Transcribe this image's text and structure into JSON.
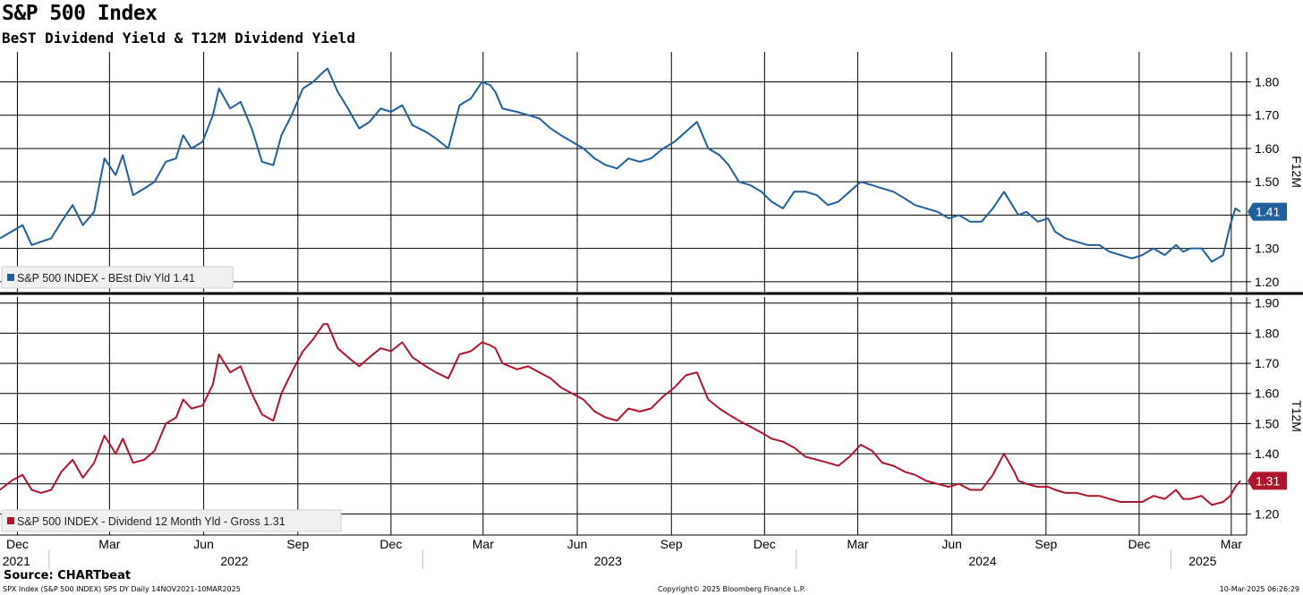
{
  "title": "S&P 500 Index",
  "subtitle": "BeST Dividend Yield & T12M Dividend Yield",
  "source": "Source: CHARTbeat",
  "footer": {
    "left": "SPX Index (S&P 500 INDEX) SPS DY  Daily 14NOV2021-10MAR2025",
    "center": "Copyright© 2025 Bloomberg Finance L.P.",
    "right": "10-Mar-2025 06:26:29"
  },
  "colors": {
    "top_series": "#1f5f9e",
    "bottom_series": "#b0132c",
    "grid": "#000000"
  },
  "x_axis": {
    "months": [
      "Dec",
      "Mar",
      "Jun",
      "Sep",
      "Dec",
      "Mar",
      "Jun",
      "Sep",
      "Dec",
      "Mar",
      "Jun",
      "Sep",
      "Dec",
      "Mar"
    ],
    "years": [
      "2021",
      "2022",
      "2023",
      "2024",
      "2025"
    ]
  },
  "chart_data": [
    {
      "type": "line",
      "ylabel": "F12M",
      "ylim": [
        1.17,
        1.89
      ],
      "yticks": [
        1.2,
        1.3,
        1.4,
        1.5,
        1.6,
        1.7,
        1.8
      ],
      "ytick_labels": [
        "1.20",
        "1.30",
        "1.40",
        "1.50",
        "1.60",
        "1.70",
        "1.80"
      ],
      "legend": "S&P 500 INDEX - BEst Div Yld 1.41",
      "last_value_label": "1.41",
      "grid": true,
      "series": [
        {
          "name": "S&P 500 INDEX - BEst Div Yld",
          "x": [
            "2021-11-14",
            "2021-11-25",
            "2021-12-06",
            "2021-12-15",
            "2021-12-24",
            "2022-01-03",
            "2022-01-13",
            "2022-01-24",
            "2022-02-03",
            "2022-02-14",
            "2022-02-24",
            "2022-03-07",
            "2022-03-14",
            "2022-03-24",
            "2022-04-04",
            "2022-04-14",
            "2022-04-25",
            "2022-05-05",
            "2022-05-12",
            "2022-05-20",
            "2022-05-31",
            "2022-06-10",
            "2022-06-16",
            "2022-06-27",
            "2022-07-07",
            "2022-07-18",
            "2022-07-28",
            "2022-08-08",
            "2022-08-16",
            "2022-08-26",
            "2022-09-06",
            "2022-09-16",
            "2022-09-26",
            "2022-09-30",
            "2022-10-10",
            "2022-10-20",
            "2022-10-31",
            "2022-11-10",
            "2022-11-21",
            "2022-12-01",
            "2022-12-12",
            "2022-12-22",
            "2023-01-04",
            "2023-01-14",
            "2023-01-26",
            "2023-02-06",
            "2023-02-17",
            "2023-02-28",
            "2023-03-08",
            "2023-03-13",
            "2023-03-20",
            "2023-04-03",
            "2023-04-14",
            "2023-04-25",
            "2023-05-06",
            "2023-05-16",
            "2023-05-27",
            "2023-06-07",
            "2023-06-18",
            "2023-06-29",
            "2023-07-10",
            "2023-07-21",
            "2023-08-01",
            "2023-08-12",
            "2023-08-24",
            "2023-09-04",
            "2023-09-15",
            "2023-09-26",
            "2023-10-07",
            "2023-10-18",
            "2023-10-27",
            "2023-11-06",
            "2023-11-17",
            "2023-11-28",
            "2023-12-08",
            "2023-12-19",
            "2023-12-30",
            "2024-01-10",
            "2024-01-21",
            "2024-02-01",
            "2024-02-11",
            "2024-02-22",
            "2024-03-04",
            "2024-03-15",
            "2024-03-25",
            "2024-04-05",
            "2024-04-16",
            "2024-04-26",
            "2024-05-07",
            "2024-05-18",
            "2024-05-29",
            "2024-06-08",
            "2024-06-19",
            "2024-06-30",
            "2024-07-11",
            "2024-07-22",
            "2024-08-01",
            "2024-08-05",
            "2024-08-13",
            "2024-08-24",
            "2024-09-03",
            "2024-09-10",
            "2024-09-20",
            "2024-10-01",
            "2024-10-12",
            "2024-10-23",
            "2024-11-02",
            "2024-11-13",
            "2024-11-24",
            "2024-12-04",
            "2024-12-15",
            "2024-12-26",
            "2025-01-06",
            "2025-01-13",
            "2025-01-20",
            "2025-01-31",
            "2025-02-10",
            "2025-02-21",
            "2025-02-28",
            "2025-03-05",
            "2025-03-10"
          ],
          "values": [
            1.33,
            1.35,
            1.37,
            1.31,
            1.32,
            1.33,
            1.38,
            1.43,
            1.37,
            1.41,
            1.57,
            1.52,
            1.58,
            1.46,
            1.48,
            1.5,
            1.56,
            1.57,
            1.64,
            1.6,
            1.62,
            1.7,
            1.78,
            1.72,
            1.74,
            1.66,
            1.56,
            1.55,
            1.64,
            1.7,
            1.78,
            1.8,
            1.83,
            1.84,
            1.77,
            1.72,
            1.66,
            1.68,
            1.72,
            1.71,
            1.73,
            1.67,
            1.65,
            1.63,
            1.6,
            1.73,
            1.75,
            1.8,
            1.79,
            1.77,
            1.72,
            1.71,
            1.7,
            1.69,
            1.66,
            1.64,
            1.62,
            1.6,
            1.57,
            1.55,
            1.54,
            1.57,
            1.56,
            1.57,
            1.6,
            1.62,
            1.65,
            1.68,
            1.6,
            1.58,
            1.55,
            1.5,
            1.49,
            1.47,
            1.44,
            1.42,
            1.47,
            1.47,
            1.46,
            1.43,
            1.44,
            1.47,
            1.5,
            1.49,
            1.48,
            1.47,
            1.45,
            1.43,
            1.42,
            1.41,
            1.39,
            1.4,
            1.38,
            1.38,
            1.42,
            1.47,
            1.42,
            1.4,
            1.41,
            1.38,
            1.39,
            1.35,
            1.33,
            1.32,
            1.31,
            1.31,
            1.29,
            1.28,
            1.27,
            1.28,
            1.3,
            1.28,
            1.31,
            1.29,
            1.3,
            1.3,
            1.26,
            1.28,
            1.37,
            1.42,
            1.41
          ]
        }
      ]
    },
    {
      "type": "line",
      "ylabel": "T12M",
      "ylim": [
        1.13,
        1.92
      ],
      "yticks": [
        1.2,
        1.3,
        1.4,
        1.5,
        1.6,
        1.7,
        1.8,
        1.9
      ],
      "ytick_labels": [
        "1.20",
        "1.30",
        "1.40",
        "1.50",
        "1.60",
        "1.70",
        "1.80",
        "1.90"
      ],
      "legend": "S&P 500 INDEX - Dividend 12 Month Yld - Gross 1.31",
      "last_value_label": "1.31",
      "grid": true,
      "series": [
        {
          "name": "S&P 500 INDEX - Dividend 12 Month Yld - Gross",
          "x": [
            "2021-11-14",
            "2021-11-25",
            "2021-12-06",
            "2021-12-15",
            "2021-12-24",
            "2022-01-03",
            "2022-01-13",
            "2022-01-24",
            "2022-02-03",
            "2022-02-14",
            "2022-02-24",
            "2022-03-07",
            "2022-03-14",
            "2022-03-24",
            "2022-04-04",
            "2022-04-14",
            "2022-04-25",
            "2022-05-05",
            "2022-05-12",
            "2022-05-20",
            "2022-05-31",
            "2022-06-10",
            "2022-06-16",
            "2022-06-27",
            "2022-07-07",
            "2022-07-18",
            "2022-07-28",
            "2022-08-08",
            "2022-08-16",
            "2022-08-26",
            "2022-09-06",
            "2022-09-16",
            "2022-09-26",
            "2022-09-30",
            "2022-10-10",
            "2022-10-20",
            "2022-10-31",
            "2022-11-10",
            "2022-11-21",
            "2022-12-01",
            "2022-12-12",
            "2022-12-22",
            "2023-01-04",
            "2023-01-14",
            "2023-01-26",
            "2023-02-06",
            "2023-02-17",
            "2023-02-28",
            "2023-03-08",
            "2023-03-13",
            "2023-03-20",
            "2023-04-03",
            "2023-04-14",
            "2023-04-25",
            "2023-05-06",
            "2023-05-16",
            "2023-05-27",
            "2023-06-07",
            "2023-06-18",
            "2023-06-29",
            "2023-07-10",
            "2023-07-21",
            "2023-08-01",
            "2023-08-12",
            "2023-08-24",
            "2023-09-04",
            "2023-09-15",
            "2023-09-26",
            "2023-10-07",
            "2023-10-18",
            "2023-10-27",
            "2023-11-06",
            "2023-11-17",
            "2023-11-28",
            "2023-12-08",
            "2023-12-19",
            "2023-12-30",
            "2024-01-10",
            "2024-01-21",
            "2024-02-01",
            "2024-02-11",
            "2024-02-22",
            "2024-03-04",
            "2024-03-15",
            "2024-03-25",
            "2024-04-05",
            "2024-04-16",
            "2024-04-26",
            "2024-05-07",
            "2024-05-18",
            "2024-05-29",
            "2024-06-08",
            "2024-06-19",
            "2024-06-30",
            "2024-07-11",
            "2024-07-22",
            "2024-08-01",
            "2024-08-05",
            "2024-08-13",
            "2024-08-24",
            "2024-09-03",
            "2024-09-10",
            "2024-09-20",
            "2024-10-01",
            "2024-10-12",
            "2024-10-23",
            "2024-11-02",
            "2024-11-13",
            "2024-11-24",
            "2024-12-04",
            "2024-12-15",
            "2024-12-26",
            "2025-01-06",
            "2025-01-13",
            "2025-01-20",
            "2025-01-31",
            "2025-02-10",
            "2025-02-21",
            "2025-02-28",
            "2025-03-05",
            "2025-03-10"
          ],
          "values": [
            1.28,
            1.31,
            1.33,
            1.28,
            1.27,
            1.28,
            1.34,
            1.38,
            1.32,
            1.37,
            1.46,
            1.4,
            1.45,
            1.37,
            1.38,
            1.41,
            1.5,
            1.52,
            1.58,
            1.55,
            1.56,
            1.63,
            1.73,
            1.67,
            1.69,
            1.6,
            1.53,
            1.51,
            1.6,
            1.67,
            1.74,
            1.78,
            1.83,
            1.83,
            1.75,
            1.72,
            1.69,
            1.72,
            1.75,
            1.74,
            1.77,
            1.72,
            1.69,
            1.67,
            1.65,
            1.73,
            1.74,
            1.77,
            1.76,
            1.75,
            1.7,
            1.68,
            1.69,
            1.67,
            1.65,
            1.62,
            1.6,
            1.58,
            1.54,
            1.52,
            1.51,
            1.55,
            1.54,
            1.55,
            1.59,
            1.62,
            1.66,
            1.67,
            1.58,
            1.55,
            1.53,
            1.51,
            1.49,
            1.47,
            1.45,
            1.44,
            1.42,
            1.39,
            1.38,
            1.37,
            1.36,
            1.39,
            1.43,
            1.41,
            1.37,
            1.36,
            1.34,
            1.33,
            1.31,
            1.3,
            1.29,
            1.3,
            1.28,
            1.28,
            1.33,
            1.4,
            1.34,
            1.31,
            1.3,
            1.29,
            1.29,
            1.28,
            1.27,
            1.27,
            1.26,
            1.26,
            1.25,
            1.24,
            1.24,
            1.24,
            1.26,
            1.25,
            1.28,
            1.25,
            1.25,
            1.26,
            1.23,
            1.24,
            1.26,
            1.29,
            1.31
          ]
        }
      ]
    }
  ]
}
